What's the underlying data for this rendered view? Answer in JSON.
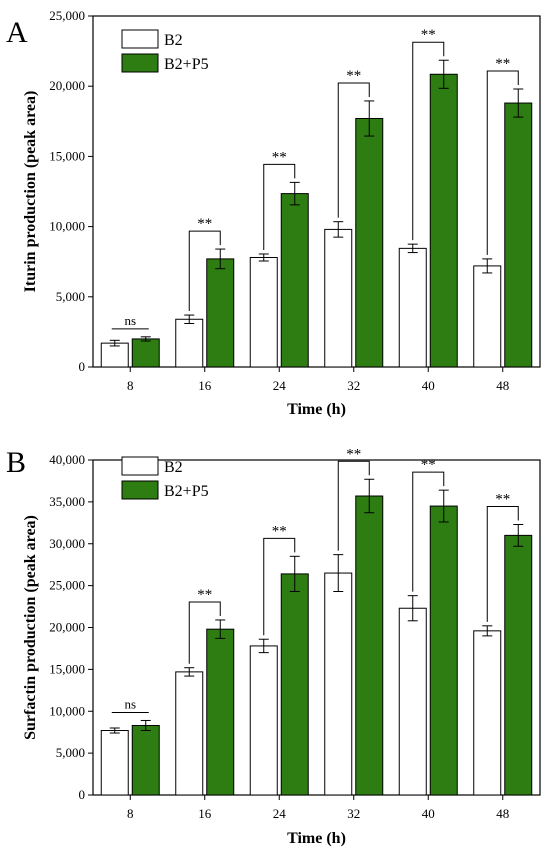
{
  "chart_data": [
    {
      "type": "bar",
      "panel_label": "A",
      "categories": [
        "8",
        "16",
        "24",
        "32",
        "40",
        "48"
      ],
      "xlabel": "Time (h)",
      "ylabel": "Iturin production (peak area)",
      "ylim": [
        0,
        25000
      ],
      "yticks": [
        0,
        5000,
        10000,
        15000,
        20000,
        25000
      ],
      "ytick_labels": [
        "0",
        "5,000",
        "10,000",
        "15,000",
        "20,000",
        "25,000"
      ],
      "legend_position": "top-left",
      "series": [
        {
          "name": "B2",
          "color": "#ffffff",
          "values": [
            1700,
            3400,
            7800,
            9800,
            8450,
            7200
          ],
          "errors": [
            200,
            300,
            250,
            550,
            300,
            500
          ]
        },
        {
          "name": "B2+P5",
          "color": "#2e7d12",
          "values": [
            2000,
            7700,
            12350,
            17700,
            20850,
            18800
          ],
          "errors": [
            150,
            700,
            800,
            1250,
            1000,
            1000
          ]
        }
      ],
      "significance": [
        "ns",
        "**",
        "**",
        "**",
        "**",
        "**"
      ]
    },
    {
      "type": "bar",
      "panel_label": "B",
      "categories": [
        "8",
        "16",
        "24",
        "32",
        "40",
        "48"
      ],
      "xlabel": "Time (h)",
      "ylabel": "Surfactin production (peak area)",
      "ylim": [
        0,
        40000
      ],
      "yticks": [
        0,
        5000,
        10000,
        15000,
        20000,
        25000,
        30000,
        35000,
        40000
      ],
      "ytick_labels": [
        "0",
        "5,000",
        "10,000",
        "15,000",
        "20,000",
        "25,000",
        "30,000",
        "35,000",
        "40,000"
      ],
      "legend_position": "top-left",
      "series": [
        {
          "name": "B2",
          "color": "#ffffff",
          "values": [
            7700,
            14700,
            17800,
            26500,
            22300,
            19600
          ],
          "errors": [
            300,
            500,
            800,
            2200,
            1500,
            600
          ]
        },
        {
          "name": "B2+P5",
          "color": "#2e7d12",
          "values": [
            8300,
            19800,
            26400,
            35700,
            34500,
            31000
          ],
          "errors": [
            600,
            1100,
            2100,
            2000,
            1900,
            1300
          ]
        }
      ],
      "significance": [
        "ns",
        "**",
        "**",
        "**",
        "**",
        "**"
      ]
    }
  ]
}
